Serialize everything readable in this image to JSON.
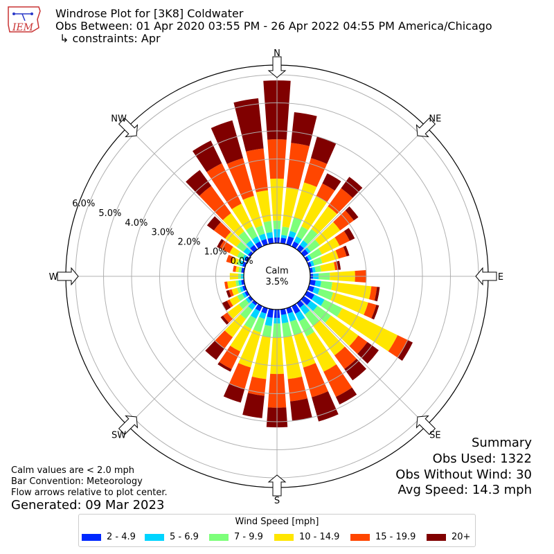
{
  "header": {
    "title": "Windrose Plot for [3K8] Coldwater",
    "obs_between": "Obs Between: 01 Apr 2020 03:55 PM - 26 Apr 2022 04:55 PM America/Chicago",
    "constraints": "↳ constraints: Apr",
    "logo_text": "IEM"
  },
  "chart_data": {
    "type": "windrose",
    "title": "Windrose Plot for [3K8] Coldwater",
    "directions": [
      "N",
      "NNE",
      "NE",
      "ENE",
      "E",
      "ESE",
      "SE",
      "SSE",
      "S",
      "SSW",
      "SW",
      "WSW",
      "W",
      "WNW",
      "NW",
      "NNW"
    ],
    "compass_labels": [
      "N",
      "NE",
      "E",
      "SE",
      "S",
      "SW",
      "W",
      "NW"
    ],
    "radial_tick_labels": [
      "0.0%",
      "1.0%",
      "2.0%",
      "3.0%",
      "4.0%",
      "5.0%",
      "6.0%"
    ],
    "radial_max": 6.5,
    "calm_label": "Calm",
    "calm_percent": "3.5%",
    "speed_bins": [
      {
        "name": "2 - 4.9",
        "color": "#0028ff"
      },
      {
        "name": "5 - 6.9",
        "color": "#00d4ff"
      },
      {
        "name": "7 - 9.9",
        "color": "#7dff7a"
      },
      {
        "name": "10 - 14.9",
        "color": "#ffe600"
      },
      {
        "name": "15 - 19.9",
        "color": "#ff4600"
      },
      {
        "name": "20+",
        "color": "#800000"
      }
    ],
    "bars": [
      {
        "angle": 0,
        "cum": [
          0.2,
          0.5,
          0.8,
          2.3,
          3.7,
          5.8
        ]
      },
      {
        "angle": 10,
        "cum": [
          0.2,
          0.3,
          0.6,
          2.0,
          3.6,
          4.7
        ]
      },
      {
        "angle": 20,
        "cum": [
          0.3,
          0.5,
          1.0,
          2.3,
          3.2,
          4.0
        ]
      },
      {
        "angle": 30,
        "cum": [
          0.2,
          0.4,
          0.8,
          2.0,
          2.5,
          2.9
        ]
      },
      {
        "angle": 40,
        "cum": [
          0.2,
          0.4,
          0.9,
          1.9,
          2.7,
          3.2
        ]
      },
      {
        "angle": 50,
        "cum": [
          0.2,
          0.3,
          0.7,
          1.6,
          2.2,
          2.4
        ]
      },
      {
        "angle": 60,
        "cum": [
          0.1,
          0.2,
          0.6,
          1.3,
          1.7,
          1.9
        ]
      },
      {
        "angle": 70,
        "cum": [
          0.1,
          0.2,
          0.5,
          1.1,
          1.4,
          1.5
        ]
      },
      {
        "angle": 80,
        "cum": [
          0.1,
          0.2,
          0.4,
          0.9,
          1.0,
          1.1
        ]
      },
      {
        "angle": 90,
        "cum": [
          0.1,
          0.3,
          0.7,
          1.6,
          2.0,
          2.0
        ]
      },
      {
        "angle": 100,
        "cum": [
          0.2,
          0.4,
          0.8,
          2.2,
          2.4,
          2.5
        ]
      },
      {
        "angle": 110,
        "cum": [
          0.2,
          0.4,
          0.9,
          2.2,
          2.5,
          2.6
        ]
      },
      {
        "angle": 120,
        "cum": [
          0.3,
          0.7,
          1.4,
          3.6,
          4.0,
          4.2
        ]
      },
      {
        "angle": 130,
        "cum": [
          0.3,
          0.6,
          1.2,
          2.4,
          2.8,
          3.3
        ]
      },
      {
        "angle": 140,
        "cum": [
          0.2,
          0.5,
          1.0,
          2.3,
          2.9,
          3.4
        ]
      },
      {
        "angle": 150,
        "cum": [
          0.3,
          0.6,
          1.2,
          2.6,
          3.6,
          3.9
        ]
      },
      {
        "angle": 160,
        "cum": [
          0.2,
          0.5,
          1.0,
          2.2,
          3.3,
          4.2
        ]
      },
      {
        "angle": 170,
        "cum": [
          0.2,
          0.5,
          1.0,
          2.5,
          3.3,
          4.0
        ]
      },
      {
        "angle": 180,
        "cum": [
          0.3,
          0.5,
          1.0,
          2.3,
          3.5,
          4.2
        ]
      },
      {
        "angle": 190,
        "cum": [
          0.3,
          0.6,
          1.0,
          2.5,
          3.1,
          3.9
        ]
      },
      {
        "angle": 200,
        "cum": [
          0.2,
          0.4,
          0.9,
          2.2,
          3.0,
          3.5
        ]
      },
      {
        "angle": 210,
        "cum": [
          0.2,
          0.5,
          0.9,
          1.8,
          2.5,
          2.6
        ]
      },
      {
        "angle": 220,
        "cum": [
          0.1,
          0.3,
          0.7,
          1.5,
          2.0,
          2.5
        ]
      },
      {
        "angle": 230,
        "cum": [
          0.1,
          0.2,
          0.5,
          1.0,
          1.2,
          1.3
        ]
      },
      {
        "angle": 240,
        "cum": [
          0.1,
          0.2,
          0.4,
          0.7,
          0.8,
          1.0
        ]
      },
      {
        "angle": 250,
        "cum": [
          0.1,
          0.2,
          0.3,
          0.5,
          0.6,
          0.7
        ]
      },
      {
        "angle": 260,
        "cum": [
          0.1,
          0.2,
          0.3,
          0.6,
          0.7,
          0.7
        ]
      },
      {
        "angle": 270,
        "cum": [
          0.0,
          0.1,
          0.2,
          0.5,
          0.5,
          0.5
        ]
      },
      {
        "angle": 280,
        "cum": [
          0.1,
          0.1,
          0.2,
          0.3,
          0.4,
          0.4
        ]
      },
      {
        "angle": 290,
        "cum": [
          0.1,
          0.2,
          0.3,
          0.5,
          0.7,
          0.7
        ]
      },
      {
        "angle": 300,
        "cum": [
          0.1,
          0.2,
          0.4,
          0.7,
          1.1,
          1.2
        ]
      },
      {
        "angle": 310,
        "cum": [
          0.1,
          0.3,
          0.6,
          1.1,
          1.6,
          1.9
        ]
      },
      {
        "angle": 320,
        "cum": [
          0.2,
          0.4,
          0.8,
          1.6,
          2.8,
          3.5
        ]
      },
      {
        "angle": 330,
        "cum": [
          0.2,
          0.4,
          0.8,
          1.7,
          3.3,
          4.2
        ]
      },
      {
        "angle": 340,
        "cum": [
          0.2,
          0.4,
          0.7,
          1.8,
          3.2,
          4.6
        ]
      },
      {
        "angle": 350,
        "cum": [
          0.2,
          0.4,
          0.8,
          1.9,
          3.4,
          5.2
        ]
      }
    ]
  },
  "footer": {
    "calm_note": "Calm values are < 2.0 mph",
    "bar_convention": "Bar Convention: Meteorology",
    "flow_arrows": "Flow arrows relative to plot center.",
    "generated": "Generated: 09 Mar 2023"
  },
  "summary": {
    "title": "Summary",
    "obs_used": "Obs Used: 1322",
    "obs_without_wind": "Obs Without Wind: 30",
    "avg_speed": "Avg Speed: 14.3 mph"
  },
  "legend": {
    "title": "Wind Speed [mph]",
    "items": [
      "2 - 4.9",
      "5 - 6.9",
      "7 - 9.9",
      "10 - 14.9",
      "15 - 19.9",
      "20+"
    ]
  }
}
